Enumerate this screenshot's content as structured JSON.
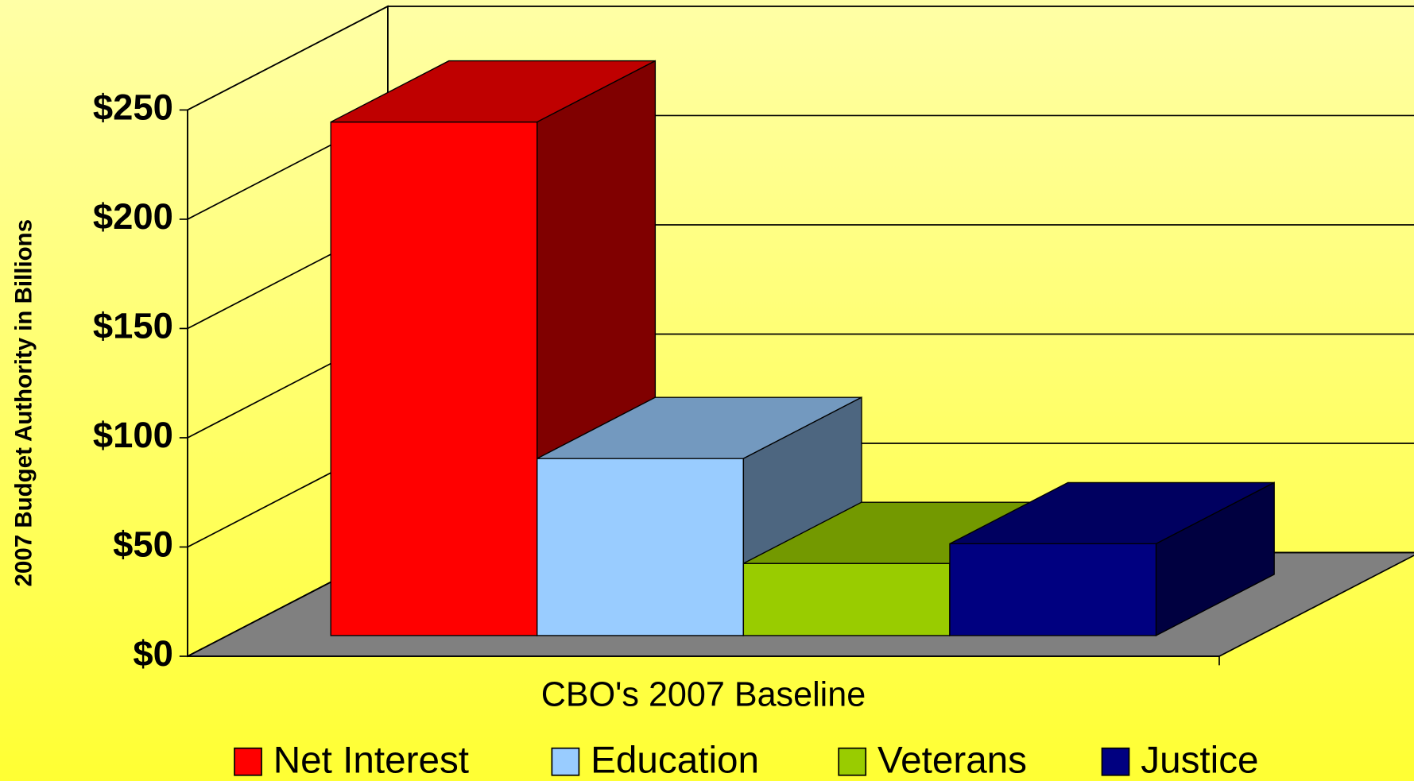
{
  "chart_data": {
    "type": "bar3d",
    "categories": [
      "CBO's 2007 Baseline"
    ],
    "ylabel": "2007 Budget Authority in Billions",
    "series": [
      {
        "name": "Net Interest",
        "color": "#ff0000",
        "values": [
          235
        ]
      },
      {
        "name": "Education",
        "color": "#99ccff",
        "values": [
          81
        ]
      },
      {
        "name": "Veterans",
        "color": "#99cc00",
        "values": [
          33
        ]
      },
      {
        "name": "Justice",
        "color": "#000080",
        "values": [
          42
        ]
      }
    ],
    "ylim": [
      0,
      250
    ],
    "yticks": [
      {
        "value": 0,
        "label": "$0"
      },
      {
        "value": 50,
        "label": "$50"
      },
      {
        "value": 100,
        "label": "$100"
      },
      {
        "value": 150,
        "label": "$150"
      },
      {
        "value": 200,
        "label": "$200"
      },
      {
        "value": 250,
        "label": "$250"
      }
    ],
    "grid": true,
    "legend": "bottom"
  }
}
